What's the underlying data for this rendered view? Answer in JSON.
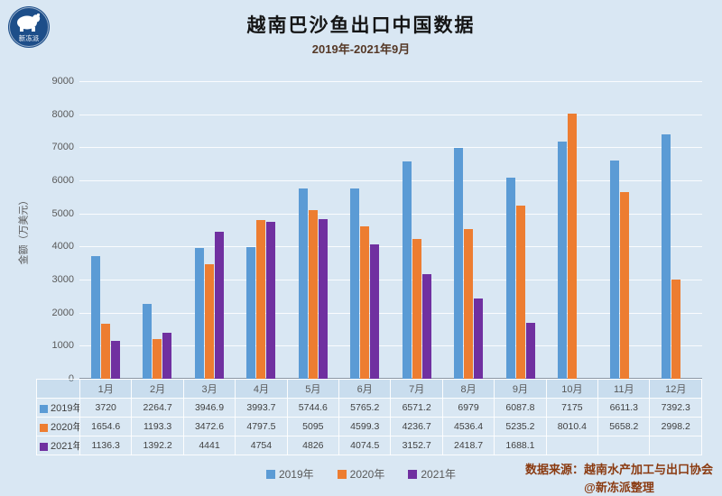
{
  "page": {
    "background": "#d9e7f3",
    "logo_text": "新冻派",
    "title": "越南巴沙鱼出口中国数据",
    "subtitle": "2019年-2021年9月",
    "source_line1": "数据来源：越南水产加工与出口协会",
    "source_line2": "@新冻派整理"
  },
  "chart_data": {
    "type": "bar",
    "title": "越南巴沙鱼出口中国数据",
    "subtitle": "2019年-2021年9月",
    "ylabel": "金额（万美元）",
    "ylim": [
      0,
      9000
    ],
    "ytick_step": 1000,
    "grid": true,
    "legend_position": "bottom",
    "data_table": true,
    "categories": [
      "1月",
      "2月",
      "3月",
      "4月",
      "5月",
      "6月",
      "7月",
      "8月",
      "9月",
      "10月",
      "11月",
      "12月"
    ],
    "series": [
      {
        "name": "2019年",
        "color": "#5b9bd5",
        "values": [
          3720,
          2264.7,
          3946.9,
          3993.7,
          5744.6,
          5765.2,
          6571.2,
          6979,
          6087.8,
          7175,
          6611.3,
          7392.3
        ]
      },
      {
        "name": "2020年",
        "color": "#ed7d31",
        "values": [
          1654.6,
          1193.3,
          3472.6,
          4797.5,
          5095,
          4599.3,
          4236.7,
          4536.4,
          5235.2,
          8010.4,
          5658.2,
          2998.2
        ]
      },
      {
        "name": "2021年",
        "color": "#7030a0",
        "values": [
          1136.3,
          1392.2,
          4441,
          4754,
          4826,
          4074.5,
          3152.7,
          2418.7,
          1688.1,
          null,
          null,
          null
        ]
      }
    ]
  }
}
